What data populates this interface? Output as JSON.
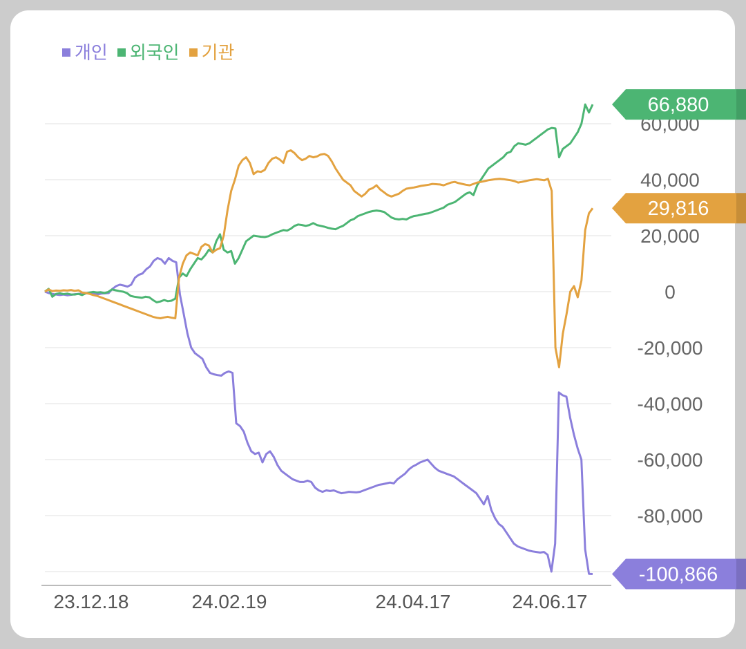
{
  "chart_data": {
    "type": "line",
    "legend": [
      {
        "name": "개인",
        "color": "#8b7fdc"
      },
      {
        "name": "외국인",
        "color": "#4cb573"
      },
      {
        "name": "기관",
        "color": "#e3a240"
      }
    ],
    "x_tick_labels": [
      "23.12.18",
      "24.02.19",
      "24.04.17",
      "24.06.17"
    ],
    "y_ticks": [
      60000,
      40000,
      20000,
      0,
      -20000,
      -40000,
      -60000,
      -80000,
      -100000
    ],
    "y_tick_labels": [
      "60,000",
      "40,000",
      "20,000",
      "0",
      "-20,000",
      "-40,000",
      "-60,000",
      "-80,000",
      "-100,000"
    ],
    "ylim": [
      -100000,
      66880
    ],
    "grid": true,
    "series": [
      {
        "name": "개인",
        "color": "#8b7fdc",
        "values": [
          0,
          -500,
          -800,
          -1000,
          -1200,
          -1000,
          -1300,
          -1100,
          -900,
          -800,
          -700,
          -600,
          -500,
          -800,
          -1000,
          -700,
          -600,
          -500,
          1000,
          2000,
          2500,
          2200,
          1800,
          2500,
          5000,
          6000,
          6500,
          8000,
          9000,
          11000,
          12000,
          11500,
          10000,
          12000,
          11000,
          10500,
          -1000,
          -8000,
          -15000,
          -20000,
          -22000,
          -23000,
          -24000,
          -27000,
          -29000,
          -29500,
          -29800,
          -30000,
          -29000,
          -28500,
          -29000,
          -47000,
          -48000,
          -50000,
          -54000,
          -57000,
          -58000,
          -57500,
          -61000,
          -58000,
          -57000,
          -59000,
          -62000,
          -64000,
          -65000,
          -66000,
          -67000,
          -67500,
          -68000,
          -68000,
          -67500,
          -68000,
          -70000,
          -71000,
          -71500,
          -71000,
          -71200,
          -71000,
          -71500,
          -72000,
          -71800,
          -71500,
          -71600,
          -71700,
          -71500,
          -71000,
          -70500,
          -70000,
          -69500,
          -69000,
          -68800,
          -68500,
          -68200,
          -68500,
          -67000,
          -66000,
          -65000,
          -63500,
          -62500,
          -61800,
          -61000,
          -60500,
          -60000,
          -61500,
          -63000,
          -64000,
          -64500,
          -65000,
          -65500,
          -66000,
          -67000,
          -68000,
          -69000,
          -70000,
          -71000,
          -72000,
          -74000,
          -76000,
          -73000,
          -78000,
          -81000,
          -83000,
          -84000,
          -86000,
          -88000,
          -90000,
          -91000,
          -91500,
          -92000,
          -92500,
          -92800,
          -93000,
          -93200,
          -93000,
          -94000,
          -100000,
          -90000,
          -36000,
          -37000,
          -37500,
          -45000,
          -51000,
          -56000,
          -60000,
          -92000,
          -100800,
          -100866
        ]
      },
      {
        "name": "외국인",
        "color": "#4cb573",
        "values": [
          0,
          1000,
          -1800,
          -800,
          -600,
          -900,
          -700,
          -1000,
          -1000,
          -800,
          -1200,
          -600,
          -300,
          -100,
          -300,
          -200,
          -500,
          -100,
          800,
          500,
          200,
          0,
          -500,
          -1500,
          -1800,
          -2000,
          -2200,
          -1800,
          -2000,
          -3000,
          -3800,
          -3500,
          -3000,
          -3400,
          -3200,
          -2500,
          5000,
          6500,
          5500,
          8000,
          10000,
          12000,
          11500,
          13000,
          15000,
          14000,
          18000,
          20500,
          15000,
          14000,
          14500,
          10000,
          12000,
          15000,
          18000,
          19000,
          20000,
          19800,
          19600,
          19500,
          19800,
          20500,
          21000,
          21500,
          22000,
          21800,
          22500,
          23500,
          24000,
          23800,
          23500,
          23800,
          24500,
          23800,
          23500,
          23200,
          22800,
          22500,
          22300,
          23000,
          23500,
          24500,
          25500,
          26000,
          27000,
          27500,
          28000,
          28500,
          28800,
          29000,
          28800,
          28500,
          27500,
          26500,
          26000,
          25800,
          26000,
          25800,
          26500,
          27000,
          27200,
          27500,
          27800,
          28000,
          28500,
          29000,
          29500,
          30000,
          31000,
          31500,
          32000,
          33000,
          34000,
          35000,
          35500,
          34500,
          38000,
          40000,
          42000,
          44000,
          45000,
          46000,
          47000,
          48000,
          49500,
          50000,
          52000,
          53000,
          52800,
          52500,
          53000,
          54000,
          55000,
          56000,
          57000,
          58000,
          58500,
          58300,
          48000,
          51000,
          52000,
          53000,
          55000,
          57000,
          60000,
          66880,
          64000,
          66880
        ]
      },
      {
        "name": "기관",
        "color": "#e3a240",
        "values": [
          0,
          800,
          200,
          400,
          300,
          500,
          400,
          600,
          300,
          500,
          -300,
          -500,
          -800,
          -1200,
          -1500,
          -2000,
          -2500,
          -3000,
          -3500,
          -4000,
          -4500,
          -5000,
          -5500,
          -6000,
          -6500,
          -7000,
          -7500,
          -8000,
          -8500,
          -9000,
          -9300,
          -9500,
          -9200,
          -9000,
          -9300,
          -9500,
          5000,
          10000,
          13000,
          14000,
          13500,
          13000,
          16000,
          17000,
          16500,
          14000,
          15000,
          15500,
          20000,
          29000,
          36000,
          40000,
          45000,
          47000,
          48000,
          46000,
          42000,
          43000,
          42800,
          43500,
          46000,
          47500,
          48000,
          47200,
          46000,
          50000,
          50500,
          49500,
          48000,
          47000,
          47500,
          48500,
          48000,
          48300,
          49000,
          49200,
          48500,
          46500,
          44000,
          42000,
          40000,
          39000,
          38000,
          36000,
          35000,
          34000,
          35000,
          36500,
          37000,
          38000,
          36500,
          35500,
          34500,
          34000,
          34500,
          35000,
          36000,
          36800,
          37000,
          37200,
          37500,
          37800,
          38000,
          38200,
          38500,
          38400,
          38300,
          38000,
          38500,
          39000,
          39200,
          38800,
          38500,
          38200,
          38000,
          38500,
          39000,
          39200,
          39500,
          39800,
          40000,
          40200,
          40300,
          40200,
          40000,
          39800,
          39500,
          39000,
          39200,
          39500,
          39800,
          40000,
          40200,
          40000,
          39800,
          40300,
          36000,
          -20000,
          -27000,
          -15000,
          -8000,
          0,
          2000,
          -2000,
          4000,
          22000,
          28000,
          29816
        ]
      }
    ],
    "end_badges": [
      {
        "series": "외국인",
        "value": 66880,
        "label": "66,880",
        "color": "#4cb573"
      },
      {
        "series": "기관",
        "value": 29816,
        "label": "29,816",
        "color": "#e3a240"
      },
      {
        "series": "개인",
        "value": -100866,
        "label": "-100,866",
        "color": "#8b7fdc"
      }
    ]
  }
}
